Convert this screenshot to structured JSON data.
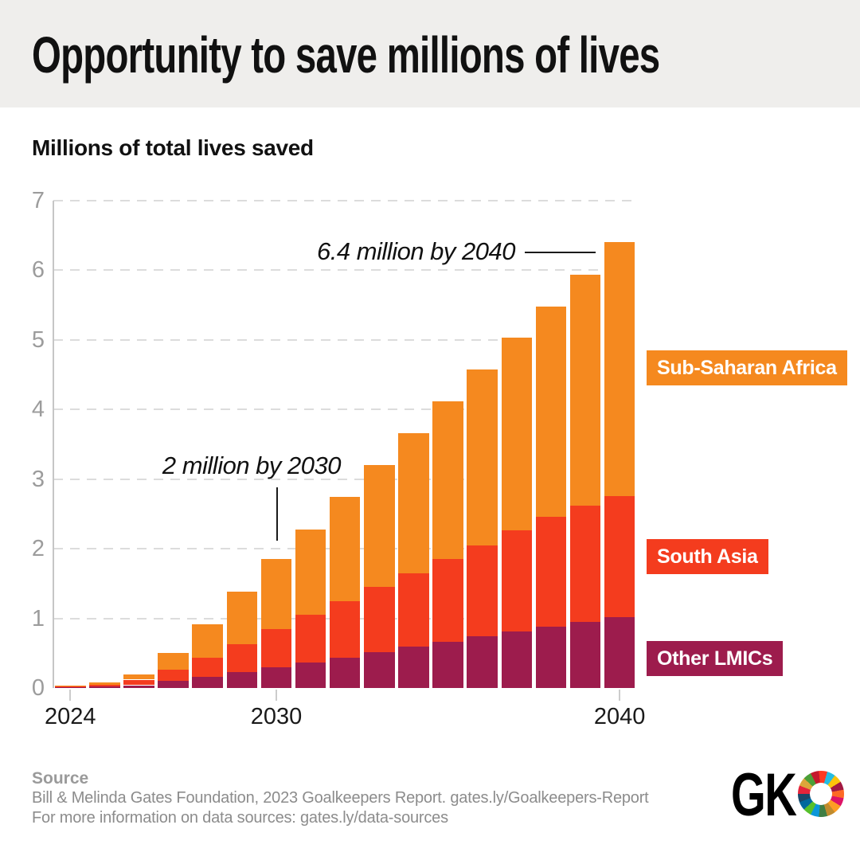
{
  "header": {
    "title": "Opportunity to save millions of lives"
  },
  "chart": {
    "subtitle": "Millions of total lives saved"
  },
  "chart_data": {
    "type": "bar",
    "stacked": true,
    "title": "Opportunity to save millions of lives",
    "subtitle": "Millions of total lives saved",
    "ylabel": "Millions of total lives saved",
    "xlabel": "",
    "ylim": [
      0,
      7
    ],
    "yticks": [
      0,
      1,
      2,
      3,
      4,
      5,
      6,
      7
    ],
    "grid": "horizontal-dashed",
    "legend_position": "right",
    "x": [
      2024,
      2025,
      2026,
      2027,
      2028,
      2029,
      2030,
      2031,
      2032,
      2033,
      2034,
      2035,
      2036,
      2037,
      2038,
      2039,
      2040
    ],
    "x_ticks": [
      {
        "label": "2024",
        "year": 2024
      },
      {
        "label": "2030",
        "year": 2030
      },
      {
        "label": "2040",
        "year": 2040
      }
    ],
    "series": [
      {
        "name": "Other LMICs",
        "color": "#9d1c4d",
        "values": [
          0.01,
          0.02,
          0.04,
          0.1,
          0.16,
          0.23,
          0.3,
          0.37,
          0.44,
          0.52,
          0.59,
          0.66,
          0.74,
          0.81,
          0.88,
          0.95,
          1.02
        ]
      },
      {
        "name": "South Asia",
        "color": "#f43c1e",
        "values": [
          0.01,
          0.03,
          0.08,
          0.16,
          0.27,
          0.4,
          0.55,
          0.68,
          0.81,
          0.93,
          1.06,
          1.19,
          1.31,
          1.45,
          1.58,
          1.67,
          1.74
        ]
      },
      {
        "name": "Sub-Saharan Africa",
        "color": "#f5891f",
        "values": [
          0.01,
          0.03,
          0.08,
          0.24,
          0.49,
          0.75,
          1.0,
          1.23,
          1.49,
          1.75,
          2.01,
          2.27,
          2.52,
          2.77,
          3.02,
          3.32,
          3.64
        ]
      }
    ],
    "totals": [
      0.03,
      0.08,
      0.2,
      0.5,
      0.92,
      1.38,
      1.85,
      2.28,
      2.74,
      3.2,
      3.66,
      4.12,
      4.57,
      5.03,
      5.48,
      5.94,
      6.4
    ],
    "annotations": [
      {
        "text": "6.4 million by 2040",
        "target_year": 2040,
        "target_value": 6.4
      },
      {
        "text": "2 million by 2030",
        "target_year": 2030,
        "target_value": 2.0
      }
    ]
  },
  "legend": {
    "items": [
      {
        "label": "Sub-Saharan Africa",
        "color": "#f5891f"
      },
      {
        "label": "South Asia",
        "color": "#f43c1e"
      },
      {
        "label": "Other LMICs",
        "color": "#9d1c4d"
      }
    ]
  },
  "footer": {
    "source_label": "Source",
    "source_line1": "Bill & Melinda Gates Foundation, 2023 Goalkeepers Report. gates.ly/Goalkeepers-Report",
    "source_line2": "For more information on data sources: gates.ly/data-sources"
  },
  "logo": {
    "text": "GK",
    "wheel_colors": [
      "#e5243b",
      "#dda63a",
      "#4c9f38",
      "#c5192d",
      "#ff3a21",
      "#26bde2",
      "#fcc30b",
      "#a21942",
      "#fd6925",
      "#dd1367",
      "#fd9d24",
      "#bf8b2e",
      "#3f7e44",
      "#0a97d9",
      "#56c02b",
      "#00689d",
      "#19486a"
    ]
  },
  "colors": {
    "header_background": "#efeeec",
    "background": "#ffffff",
    "gridline": "#dcdcdc",
    "axis_line": "#c6c6c6",
    "y_tick_label": "#9c9c9c",
    "x_tick_label": "#1a1a1a",
    "annotation_text": "#111111"
  }
}
